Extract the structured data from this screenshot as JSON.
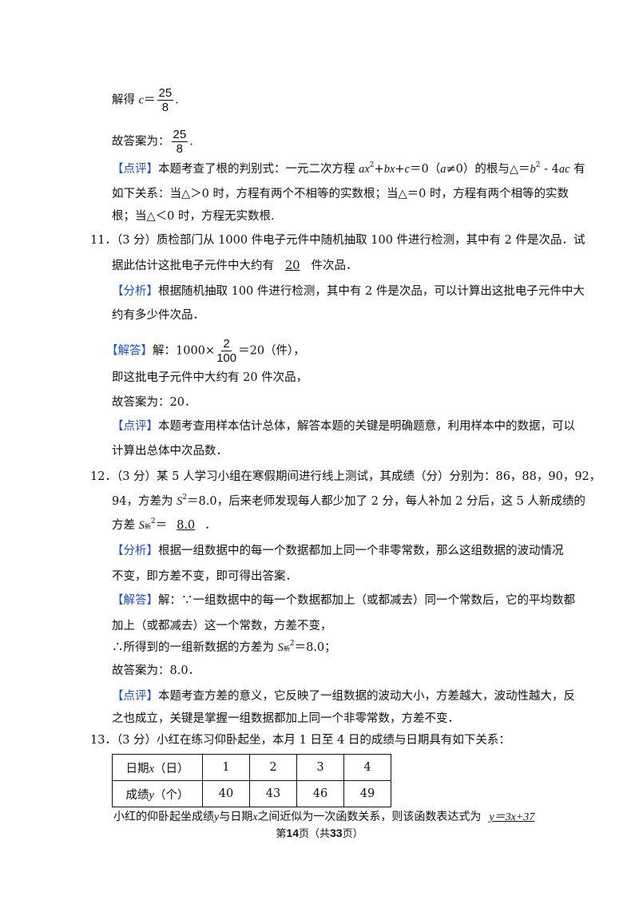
{
  "q10": {
    "solve_prefix": "解得 ",
    "solve_var": "c",
    "solve_eq": "＝",
    "frac_num": "25",
    "frac_den": "8",
    "period": ".",
    "answer_prefix": "故答案为：",
    "review_tag": "【点评】",
    "review_1a": "本题考查了根的判别式：一元二次方程 ",
    "review_1b": "ax",
    "review_1c": "2",
    "review_1d": "+",
    "review_1e": "bx",
    "review_1f": "+",
    "review_1g": "c",
    "review_1h": "＝0（",
    "review_1i": "a",
    "review_1j": "≠0）的根与△＝",
    "review_1k": "b",
    "review_1l": "2",
    "review_1m": " - 4",
    "review_1n": "ac",
    "review_1o": " 有",
    "review_2": "如下关系：当△＞0 时，方程有两个不相等的实数根；当△＝0 时，方程有两个相等的实数",
    "review_3": "根；当△＜0 时，方程无实数根."
  },
  "q11": {
    "line1": "11．（3 分）质检部门从 1000 件电子元件中随机抽取 100 件进行检测，其中有 2 件是次品．试",
    "line2a": "据此估计这批电子元件中大约有",
    "line2_answer": "20",
    "line2b": "件次品．",
    "analysis_tag": "【分析】",
    "analysis_1": "根据随机抽取 100 件进行检测，其中有 2 件是次品，可以计算出这批电子元件中大",
    "analysis_2": "约有多少件次品．",
    "solution_tag": "【解答】",
    "solution_a": "解：1000×",
    "solution_num": "2",
    "solution_den": "100",
    "solution_b": "＝20（件），",
    "solution_2": "即这批电子元件中大约有 20 件次品，",
    "solution_3": "故答案为：20．",
    "review_tag": "【点评】",
    "review_1": "本题考查用样本估计总体，解答本题的关键是明确题意，利用样本中的数据，可以",
    "review_2": "计算出总体中次品数．"
  },
  "q12": {
    "line1": "12．（3 分）某 5 人学习小组在寒假期间进行线上测试，其成绩（分）分别为：86，88，90，92，",
    "line2a": "94，方差为 ",
    "line2_s": "S",
    "line2_sup": "2",
    "line2b": "＝8.0，后来老师发现每人都少加了 2 分，每人补加 2 分后，这 5 人新成绩的",
    "line3a": "方差 ",
    "line3_s": "S",
    "line3_sub": "新",
    "line3_sup": "2",
    "line3_eq": "＝",
    "line3_answer": "8.0",
    "line3_end": "．",
    "analysis_tag": "【分析】",
    "analysis_1": "根据一组数据中的每一个数据都加上同一个非零常数，那么这组数据的波动情况",
    "analysis_2": "不变，即方差不变，即可得出答案．",
    "solution_tag": "【解答】",
    "solution_1": "解：∵一组数据中的每一个数据都加上（或都减去）同一个常数后，它的平均数都",
    "solution_2": "加上（或都减去）这一个常数，方差不变，",
    "solution_3a": "∴所得到的一组新数据的方差为 ",
    "solution_3_s": "S",
    "solution_3_sub": "新",
    "solution_3_sup": "2",
    "solution_3b": "＝8.0；",
    "solution_4": "故答案为：8.0．",
    "review_tag": "【点评】",
    "review_1": "本题考查方差的意义，它反映了一组数据的波动大小，方差越大，波动性越大，反",
    "review_2": "之也成立，关键是掌握一组数据都加上同一个非零常数，方差不变．"
  },
  "q13": {
    "line1": "13．（3 分）小红在练习仰卧起坐，本月 1 日至 4 日的成绩与日期具有如下关系：",
    "table": {
      "row1_head": "日期",
      "row1_var": "x",
      "row1_unit": "（日）",
      "row1": [
        "1",
        "2",
        "3",
        "4"
      ],
      "row2_head": "成绩",
      "row2_var": "y",
      "row2_unit": "（个）",
      "row2": [
        "40",
        "43",
        "46",
        "49"
      ]
    },
    "line2a": "小红的仰卧起坐成绩",
    "line2_y": "y",
    "line2b": "与日期",
    "line2_x": "x",
    "line2c": "之间近似为一次函数关系，则该函数表达式为",
    "answer": "y＝3x+37"
  },
  "footer": {
    "pre": "第",
    "page": "14",
    "mid": "页（共",
    "total": "33",
    "post": "页）"
  }
}
